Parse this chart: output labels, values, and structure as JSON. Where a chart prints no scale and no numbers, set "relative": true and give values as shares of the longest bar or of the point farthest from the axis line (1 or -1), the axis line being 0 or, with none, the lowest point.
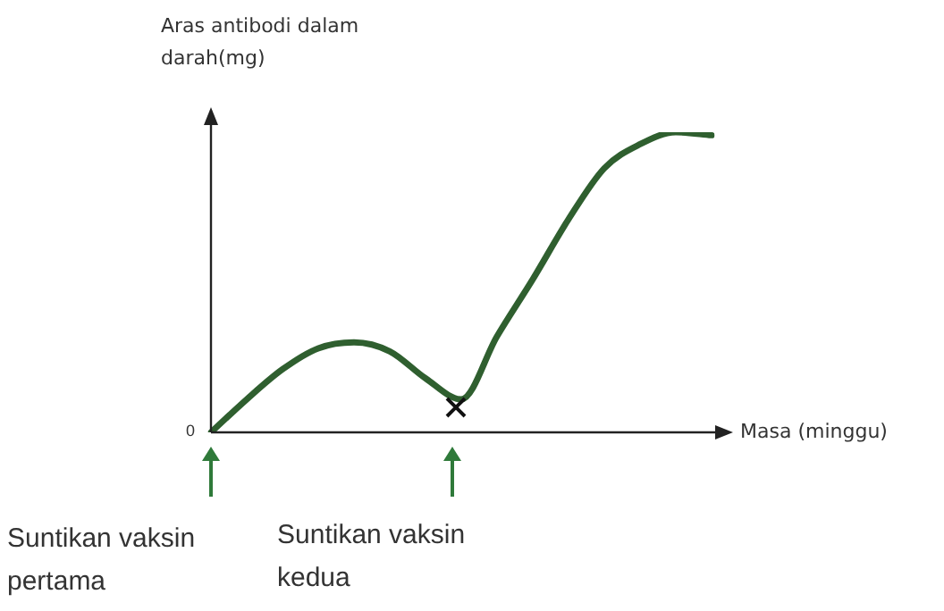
{
  "chart_data": {
    "type": "line",
    "relative": true,
    "ylabel": "Aras antibodi dalam darah(mg)",
    "xlabel": "Masa (minggu)",
    "categories": [
      null,
      null,
      null,
      null,
      null,
      null,
      null,
      null,
      null,
      null,
      null,
      null,
      null,
      null,
      null
    ],
    "series": [
      {
        "color": "#2f5f2f",
        "values": [
          0,
          0.11,
          0.21,
          0.28,
          0.3,
          0.27,
          0.18,
          0.11,
          0.32,
          0.51,
          0.71,
          0.88,
          0.96,
          1,
          0.99
        ]
      }
    ],
    "annotations": [
      "0",
      "Suntikan vaksin pertama",
      "Suntikan vaksin kedua"
    ],
    "grid": false,
    "legend": false,
    "marker": "none",
    "line_style": "solid"
  }
}
